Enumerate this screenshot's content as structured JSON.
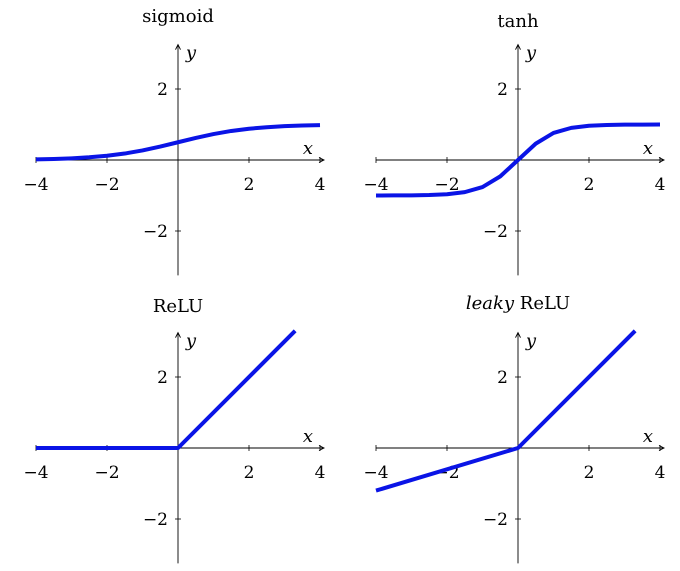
{
  "chart_data": [
    {
      "type": "line",
      "title": "sigmoid",
      "title_prefix": "",
      "xlabel": "x",
      "ylabel": "y",
      "xlim": [
        -4,
        4
      ],
      "ylim": [
        -3.25,
        3.25
      ],
      "xticks": [
        -4,
        -2,
        2,
        4
      ],
      "yticks": [
        -2,
        2
      ],
      "xtick_labels": [
        "−4",
        "−2",
        "2",
        "4"
      ],
      "ytick_labels": [
        "−2",
        "2"
      ],
      "series": [
        {
          "color": "#0a14e6",
          "x": [
            -4,
            -3.5,
            -3,
            -2.5,
            -2,
            -1.5,
            -1,
            -0.5,
            0,
            0.5,
            1,
            1.5,
            2,
            2.5,
            3,
            3.5,
            4
          ],
          "y": [
            0.018,
            0.029,
            0.047,
            0.076,
            0.119,
            0.182,
            0.269,
            0.378,
            0.5,
            0.622,
            0.731,
            0.818,
            0.881,
            0.924,
            0.953,
            0.971,
            0.982
          ]
        }
      ]
    },
    {
      "type": "line",
      "title": "tanh",
      "title_prefix": "",
      "xlabel": "x",
      "ylabel": "y",
      "xlim": [
        -4,
        4
      ],
      "ylim": [
        -3.25,
        3.25
      ],
      "xticks": [
        -4,
        -2,
        2,
        4
      ],
      "yticks": [
        -2,
        2
      ],
      "xtick_labels": [
        "−4",
        "−2",
        "2",
        "4"
      ],
      "ytick_labels": [
        "−2",
        "2"
      ],
      "series": [
        {
          "color": "#0a14e6",
          "x": [
            -4,
            -3.5,
            -3,
            -2.5,
            -2,
            -1.5,
            -1,
            -0.5,
            0,
            0.5,
            1,
            1.5,
            2,
            2.5,
            3,
            3.5,
            4
          ],
          "y": [
            -0.999,
            -0.998,
            -0.995,
            -0.987,
            -0.964,
            -0.905,
            -0.762,
            -0.462,
            0,
            0.462,
            0.762,
            0.905,
            0.964,
            0.987,
            0.995,
            0.998,
            0.999
          ]
        }
      ]
    },
    {
      "type": "line",
      "title": "ReLU",
      "title_prefix": "",
      "xlabel": "x",
      "ylabel": "y",
      "xlim": [
        -4,
        4
      ],
      "ylim": [
        -3.25,
        3.25
      ],
      "xticks": [
        -4,
        -2,
        2,
        4
      ],
      "yticks": [
        -2,
        2
      ],
      "xtick_labels": [
        "−4",
        "−2",
        "2",
        "4"
      ],
      "ytick_labels": [
        "−2",
        "2"
      ],
      "series": [
        {
          "color": "#0a14e6",
          "x": [
            -4,
            0,
            3.3
          ],
          "y": [
            0,
            0,
            3.3
          ]
        }
      ]
    },
    {
      "type": "line",
      "title": "ReLU",
      "title_prefix": "leaky",
      "xlabel": "x",
      "ylabel": "y",
      "xlim": [
        -4,
        4
      ],
      "ylim": [
        -3.25,
        3.25
      ],
      "xticks": [
        -4,
        -2,
        2,
        4
      ],
      "yticks": [
        -2,
        2
      ],
      "xtick_labels": [
        "−4",
        "−2",
        "2",
        "4"
      ],
      "ytick_labels": [
        "−2",
        "2"
      ],
      "series": [
        {
          "color": "#0a14e6",
          "x": [
            -4,
            0,
            3.3
          ],
          "y": [
            -1.2,
            0,
            3.3
          ]
        }
      ]
    }
  ]
}
